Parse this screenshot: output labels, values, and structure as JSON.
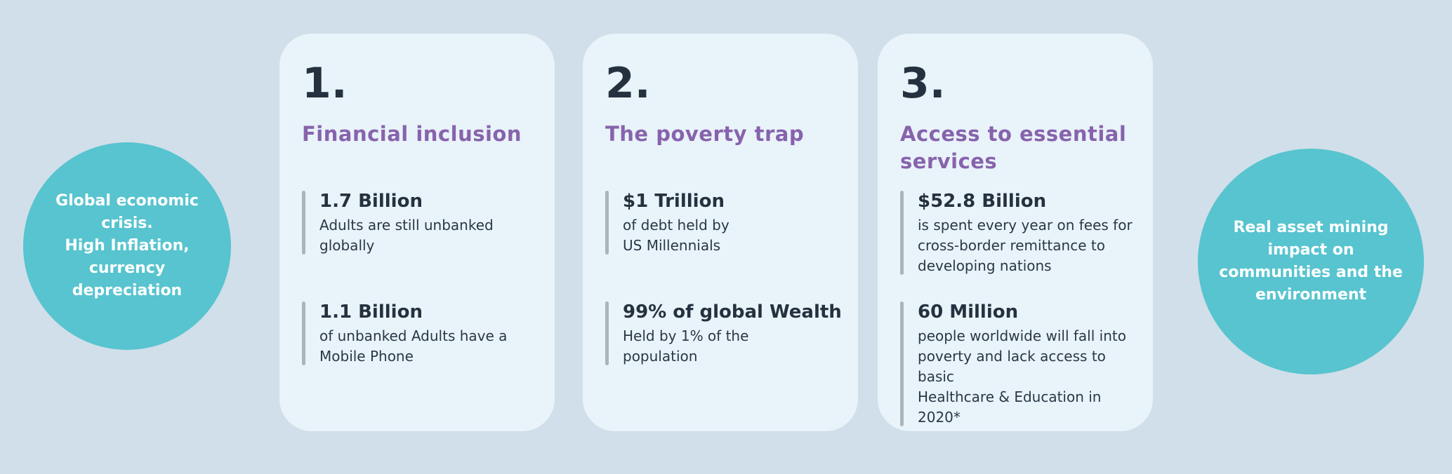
{
  "colors": {
    "page_background": "#d1dfea",
    "card_background": "#e9f3fa",
    "circle_background": "#57c4cf",
    "circle_text": "#ffffff",
    "heading_purple": "#8763ac",
    "text_dark": "#25313e",
    "accent_bar_gray": "#adb4b8"
  },
  "left_circle": {
    "text": "Global economic\ncrisis.\nHigh Inflation,\ncurrency\ndepreciation"
  },
  "right_circle": {
    "text": "Real asset  mining\nimpact on\ncommunities and the\nenvironment"
  },
  "cards": [
    {
      "number": "1.",
      "title": "Financial inclusion",
      "stats": [
        {
          "value": "1.7 Billion",
          "description": "Adults are still unbanked\nglobally"
        },
        {
          "value": "1.1 Billion",
          "description": "of unbanked Adults have a\nMobile Phone"
        }
      ]
    },
    {
      "number": "2.",
      "title": "The poverty trap",
      "stats": [
        {
          "value": "$1 Trillion",
          "description": "of debt held by\nUS Millennials"
        },
        {
          "value": "99% of global Wealth",
          "description": "Held by 1% of the\npopulation"
        }
      ]
    },
    {
      "number": "3.",
      "title": "Access to essential\nservices",
      "stats": [
        {
          "value": "$52.8 Billion",
          "description": "is spent every year on fees for\ncross-border remittance to\ndeveloping nations"
        },
        {
          "value": "60 Million",
          "description": "people worldwide will fall into\npoverty and lack access to basic\nHealthcare & Education in 2020*"
        }
      ]
    }
  ]
}
